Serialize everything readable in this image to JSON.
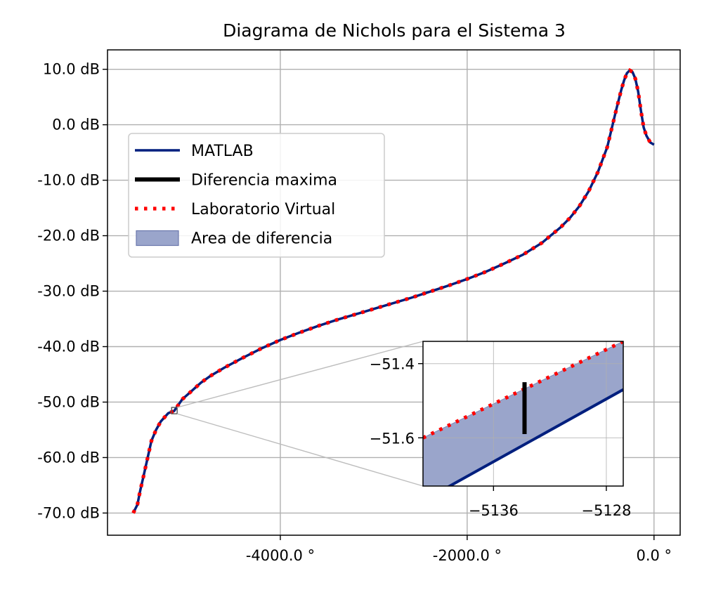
{
  "chart_data": {
    "type": "line",
    "title": "Diagrama de Nichols para el Sistema 3",
    "xlabel": "",
    "ylabel": "",
    "xlim": [
      -5850,
      280
    ],
    "ylim": [
      -74,
      13.5
    ],
    "x_ticks": [
      {
        "value": -4000,
        "label": "-4000.0 °"
      },
      {
        "value": -2000,
        "label": "-2000.0 °"
      },
      {
        "value": 0,
        "label": "0.0 °"
      }
    ],
    "y_ticks": [
      {
        "value": 10,
        "label": "10.0 dB"
      },
      {
        "value": 0,
        "label": "0.0 dB"
      },
      {
        "value": -10,
        "label": "-10.0 dB"
      },
      {
        "value": -20,
        "label": "-20.0 dB"
      },
      {
        "value": -30,
        "label": "-30.0 dB"
      },
      {
        "value": -40,
        "label": "-40.0 dB"
      },
      {
        "value": -50,
        "label": "-50.0 dB"
      },
      {
        "value": -60,
        "label": "-60.0 dB"
      },
      {
        "value": -70,
        "label": "-70.0 dB"
      }
    ],
    "grid": true,
    "legend_position": "upper-left",
    "series": [
      {
        "name": "MATLAB",
        "color": "#001f7e",
        "style": "solid",
        "x": [
          -5575,
          -5530,
          -5500,
          -5460,
          -5420,
          -5380,
          -5330,
          -5280,
          -5200,
          -5137,
          -5050,
          -4950,
          -4850,
          -4750,
          -4600,
          -4400,
          -4200,
          -4000,
          -3800,
          -3600,
          -3400,
          -3200,
          -3000,
          -2800,
          -2600,
          -2400,
          -2200,
          -2000,
          -1800,
          -1600,
          -1400,
          -1200,
          -1000,
          -900,
          -800,
          -700,
          -600,
          -500,
          -450,
          -400,
          -350,
          -320,
          -290,
          -260,
          -230,
          -200,
          -170,
          -140,
          -110,
          -80,
          -40,
          0
        ],
        "y": [
          -70,
          -68.5,
          -66,
          -63,
          -60,
          -57,
          -55,
          -53.5,
          -52,
          -51.6,
          -49.5,
          -48,
          -46.5,
          -45.3,
          -43.8,
          -42,
          -40.3,
          -38.8,
          -37.5,
          -36.3,
          -35.2,
          -34.2,
          -33.2,
          -32.2,
          -31.2,
          -30.1,
          -29,
          -27.8,
          -26.5,
          -25,
          -23.4,
          -21.3,
          -18.5,
          -16.8,
          -14.7,
          -12,
          -8.5,
          -4,
          -0.5,
          3,
          6.3,
          8,
          9.3,
          9.8,
          9.5,
          8.3,
          6,
          2.5,
          -0.5,
          -2,
          -3.2,
          -3.6
        ]
      },
      {
        "name": "Laboratorio Virtual",
        "color": "#ff0000",
        "style": "dotted"
      }
    ],
    "legend": [
      {
        "label": "MATLAB",
        "kind": "line",
        "color": "#001f7e"
      },
      {
        "label": "Diferencia maxima",
        "kind": "line",
        "color": "#000000"
      },
      {
        "label": "Laboratorio Virtual",
        "kind": "dotted",
        "color": "#ff0000"
      },
      {
        "label": "Area de diferencia",
        "kind": "patch",
        "color": "#9aa5cb"
      }
    ],
    "inset": {
      "xlim": [
        -5141,
        -5126.8
      ],
      "ylim": [
        -51.73,
        -51.34
      ],
      "x_ticks": [
        {
          "value": -5136,
          "label": "−5136"
        },
        {
          "value": -5128,
          "label": "−5128"
        }
      ],
      "y_ticks": [
        {
          "value": -51.4,
          "label": "−51.4"
        },
        {
          "value": -51.6,
          "label": "−51.6"
        }
      ],
      "matlab_line": {
        "x": [
          -5141,
          -5126.8
        ],
        "y": [
          -51.77,
          -51.47
        ]
      },
      "virtual_line": {
        "x": [
          -5141,
          -5126.8
        ],
        "y": [
          -51.6,
          -51.34
        ]
      },
      "max_difference": {
        "x": -5133.8,
        "y_low": -51.59,
        "y_high": -51.45
      }
    }
  }
}
